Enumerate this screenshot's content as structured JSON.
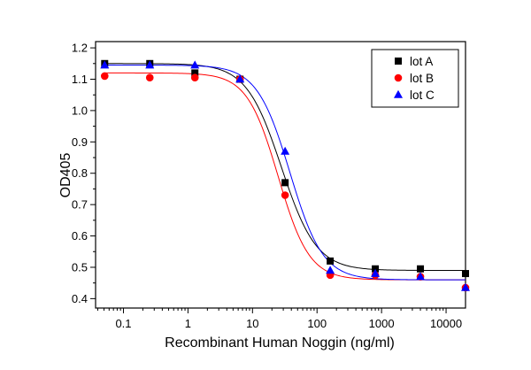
{
  "chart_data": {
    "type": "scatter",
    "title": "",
    "xlabel": "Recombinant Human Noggin (ng/ml)",
    "ylabel": "OD405",
    "xscale": "log",
    "xlim": [
      0.037,
      20000
    ],
    "ylim": [
      0.37,
      1.22
    ],
    "x_ticks": [
      0.1,
      1,
      10,
      100,
      1000,
      10000
    ],
    "x_tick_labels": [
      "0.1",
      "1",
      "10",
      "100",
      "1000",
      "10000"
    ],
    "y_ticks": [
      0.4,
      0.5,
      0.6,
      0.7,
      0.8,
      0.9,
      1.0,
      1.1,
      1.2
    ],
    "y_tick_labels": [
      "0.4",
      "0.5",
      "0.6",
      "0.7",
      "0.8",
      "0.9",
      "1.0",
      "1.1",
      "1.2"
    ],
    "grid": false,
    "legend_position": "top-right",
    "x": [
      0.0512,
      0.256,
      1.28,
      6.4,
      32,
      160,
      800,
      4000,
      20000
    ],
    "series": [
      {
        "name": "lot A",
        "marker": "square",
        "color": "#000000",
        "values": [
          1.15,
          1.15,
          1.12,
          1.1,
          0.77,
          0.52,
          0.495,
          0.495,
          0.48
        ],
        "fit": {
          "top": 1.15,
          "bottom": 0.49,
          "ec50": 28,
          "hill": 1.6
        }
      },
      {
        "name": "lot B",
        "marker": "circle",
        "color": "#ff0000",
        "values": [
          1.11,
          1.105,
          1.105,
          1.1,
          0.73,
          0.475,
          0.475,
          0.47,
          0.435
        ],
        "fit": {
          "top": 1.12,
          "bottom": 0.46,
          "ec50": 25,
          "hill": 1.8
        }
      },
      {
        "name": "lot C",
        "marker": "triangle",
        "color": "#0000ff",
        "values": [
          1.145,
          1.145,
          1.145,
          1.1,
          0.87,
          0.49,
          0.48,
          0.47,
          0.435
        ],
        "fit": {
          "top": 1.145,
          "bottom": 0.46,
          "ec50": 38,
          "hill": 1.7
        }
      }
    ]
  }
}
